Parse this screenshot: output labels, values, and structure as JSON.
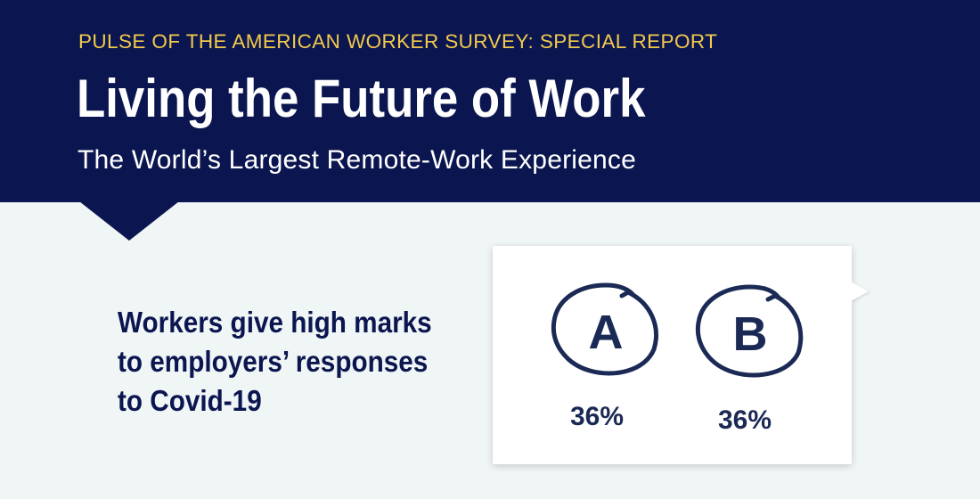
{
  "header": {
    "kicker": "PULSE OF THE AMERICAN WORKER SURVEY: SPECIAL REPORT",
    "title": "Living the Future of Work",
    "subtitle": "The World’s Largest Remote-Work Experience"
  },
  "headline": "Workers give high marks\nto employers’ responses\nto Covid-19",
  "grades": [
    {
      "letter": "A",
      "percent": "36%"
    },
    {
      "letter": "B",
      "percent": "36%"
    }
  ],
  "colors": {
    "navy": "#0b1650",
    "gold": "#f2c94c",
    "background": "#f0f5f6",
    "ink": "#1b2a55"
  }
}
